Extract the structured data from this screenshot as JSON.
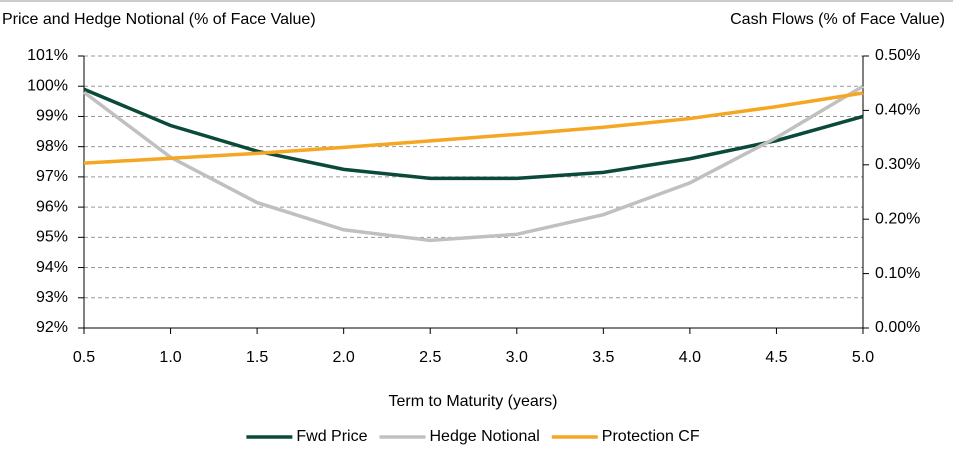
{
  "chart_data": {
    "type": "line",
    "ylabel": "Price and Hedge Notional (% of Face Value)",
    "y2label": "Cash Flows (% of Face Value)",
    "xlabel": "Term to Maturity (years)",
    "x": [
      0.5,
      1.0,
      1.5,
      2.0,
      2.5,
      3.0,
      3.5,
      4.0,
      4.5,
      5.0
    ],
    "xlim": [
      0.5,
      5.0
    ],
    "xticks": [
      0.5,
      {
        "value": 1,
        "label": "1.0"
      },
      1.5,
      {
        "value": 2,
        "label": "2.0"
      },
      2.5,
      {
        "value": 3,
        "label": "3.0"
      },
      3.5,
      {
        "value": 4,
        "label": "4.0"
      },
      4.5,
      {
        "value": 5,
        "label": "5.0"
      }
    ],
    "ylim": [
      92,
      101
    ],
    "yticks": [
      {
        "value": 92,
        "label": "92%"
      },
      {
        "value": 93,
        "label": "93%"
      },
      {
        "value": 94,
        "label": "94%"
      },
      {
        "value": 95,
        "label": "95%"
      },
      {
        "value": 96,
        "label": "96%"
      },
      {
        "value": 97,
        "label": "97%"
      },
      {
        "value": 98,
        "label": "98%"
      },
      {
        "value": 99,
        "label": "99%"
      },
      {
        "value": 100,
        "label": "100%"
      },
      {
        "value": 101,
        "label": "101%"
      }
    ],
    "y2lim": [
      0,
      0.5
    ],
    "y2ticks": [
      {
        "value": 0,
        "label": "0.00%"
      },
      {
        "value": 0.1,
        "label": "0.10%"
      },
      {
        "value": 0.2,
        "label": "0.20%"
      },
      {
        "value": 0.3,
        "label": "0.30%"
      },
      {
        "value": 0.4,
        "label": "0.40%"
      },
      {
        "value": 0.5,
        "label": "0.50%"
      }
    ],
    "grid": true,
    "legend": "bottom",
    "series": [
      {
        "name": "Fwd Price",
        "color": "#0b4a3a",
        "values": [
          99.9,
          98.7,
          97.85,
          97.25,
          96.95,
          96.95,
          97.15,
          97.6,
          98.2,
          99.0
        ]
      },
      {
        "name": "Hedge Notional",
        "color": "#c0c0c0",
        "values": [
          99.8,
          97.65,
          96.15,
          95.25,
          94.9,
          95.1,
          95.75,
          96.8,
          98.3,
          100.0
        ]
      },
      {
        "name": "Protection CF",
        "color": "#f5a623",
        "axis": "y2",
        "values": [
          0.303,
          0.312,
          0.321,
          0.332,
          0.344,
          0.356,
          0.369,
          0.385,
          0.407,
          0.432
        ]
      }
    ]
  }
}
